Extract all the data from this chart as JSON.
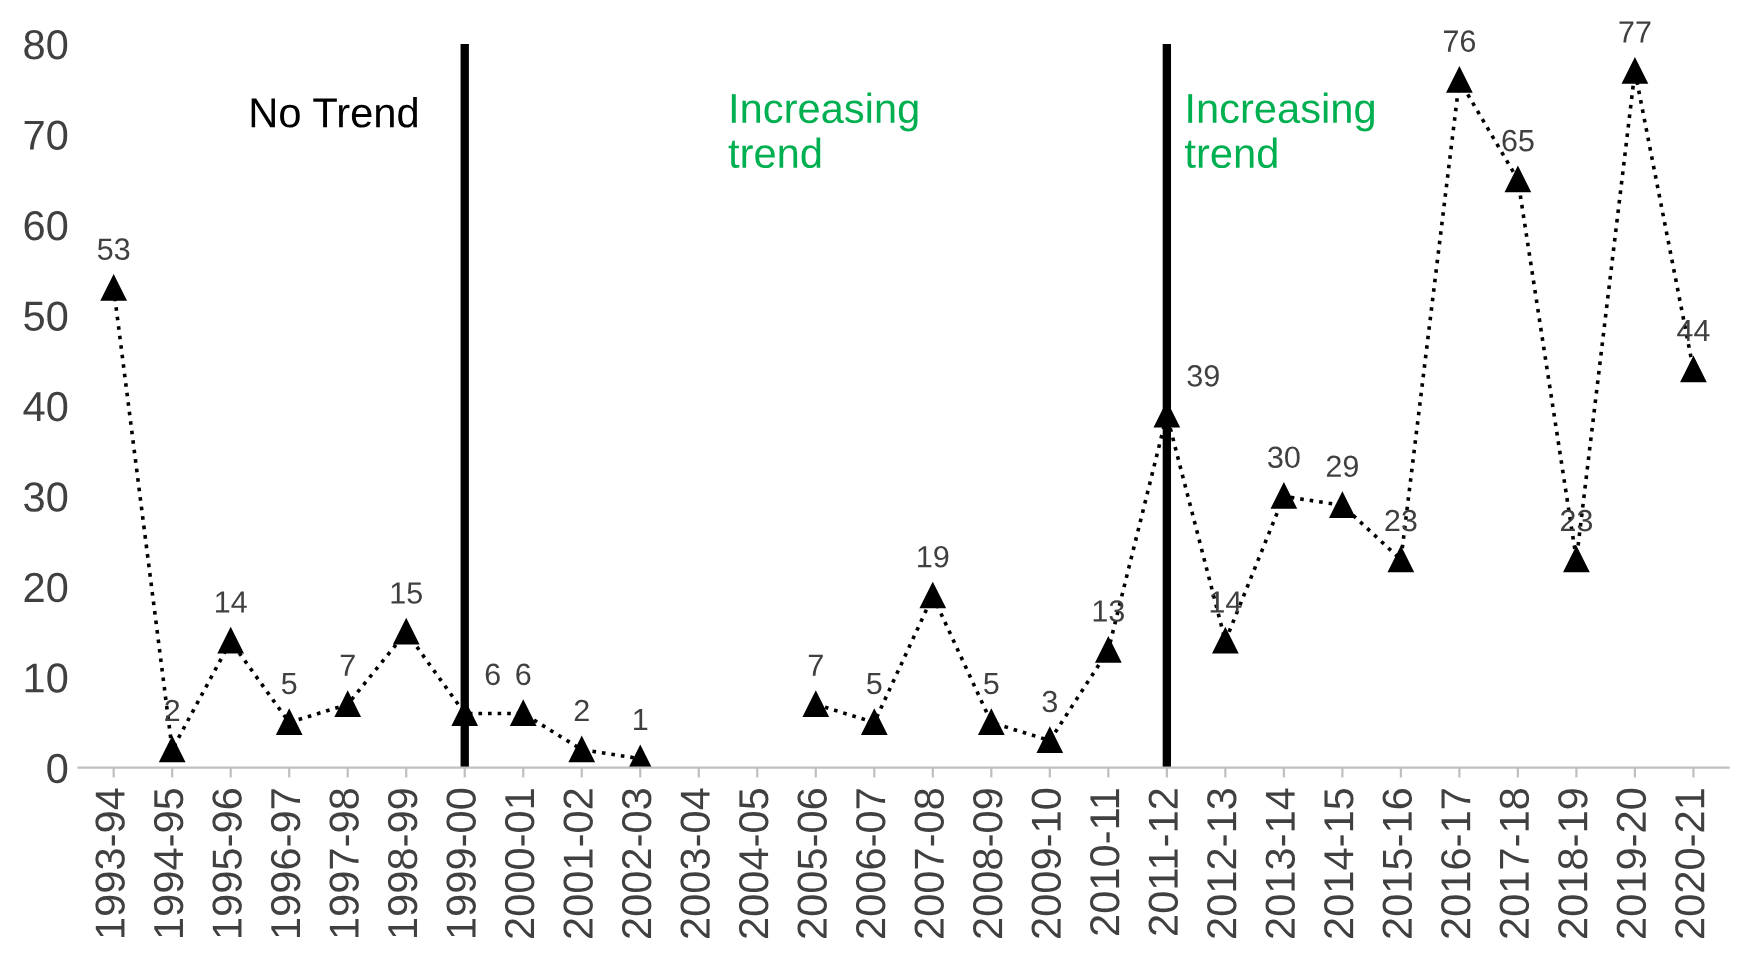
{
  "chart_data": {
    "type": "line",
    "categories": [
      "1993-94",
      "1994-95",
      "1995-96",
      "1996-97",
      "1997-98",
      "1998-99",
      "1999-00",
      "2000-01",
      "2001-02",
      "2002-03",
      "2003-04",
      "2004-05",
      "2005-06",
      "2006-07",
      "2007-08",
      "2008-09",
      "2009-10",
      "2010-11",
      "2011-12",
      "2012-13",
      "2013-14",
      "2014-15",
      "2015-16",
      "2016-17",
      "2017-18",
      "2018-19",
      "2019-20",
      "2020-21"
    ],
    "series": [
      {
        "color": "#000000",
        "values": [
          53,
          2,
          14,
          5,
          7,
          15,
          6,
          6,
          2,
          1,
          null,
          null,
          7,
          5,
          19,
          5,
          3,
          13,
          39,
          14,
          30,
          29,
          23,
          76,
          65,
          23,
          77,
          44
        ]
      }
    ],
    "ylim": [
      0,
      80
    ],
    "yticks": [
      0,
      10,
      20,
      30,
      40,
      50,
      60,
      70,
      80
    ],
    "marker": "triangle",
    "line_style": "dotted",
    "data_labels": true,
    "grid": false,
    "legend": false,
    "ref_lines": [
      {
        "axis": "x",
        "value": "1999-00",
        "color": "#000000"
      },
      {
        "axis": "x",
        "value": "2011-12",
        "color": "#000000"
      }
    ],
    "annotations": [
      "No Trend",
      "Increasing\ntrend",
      "Increasing\ntrend"
    ]
  }
}
